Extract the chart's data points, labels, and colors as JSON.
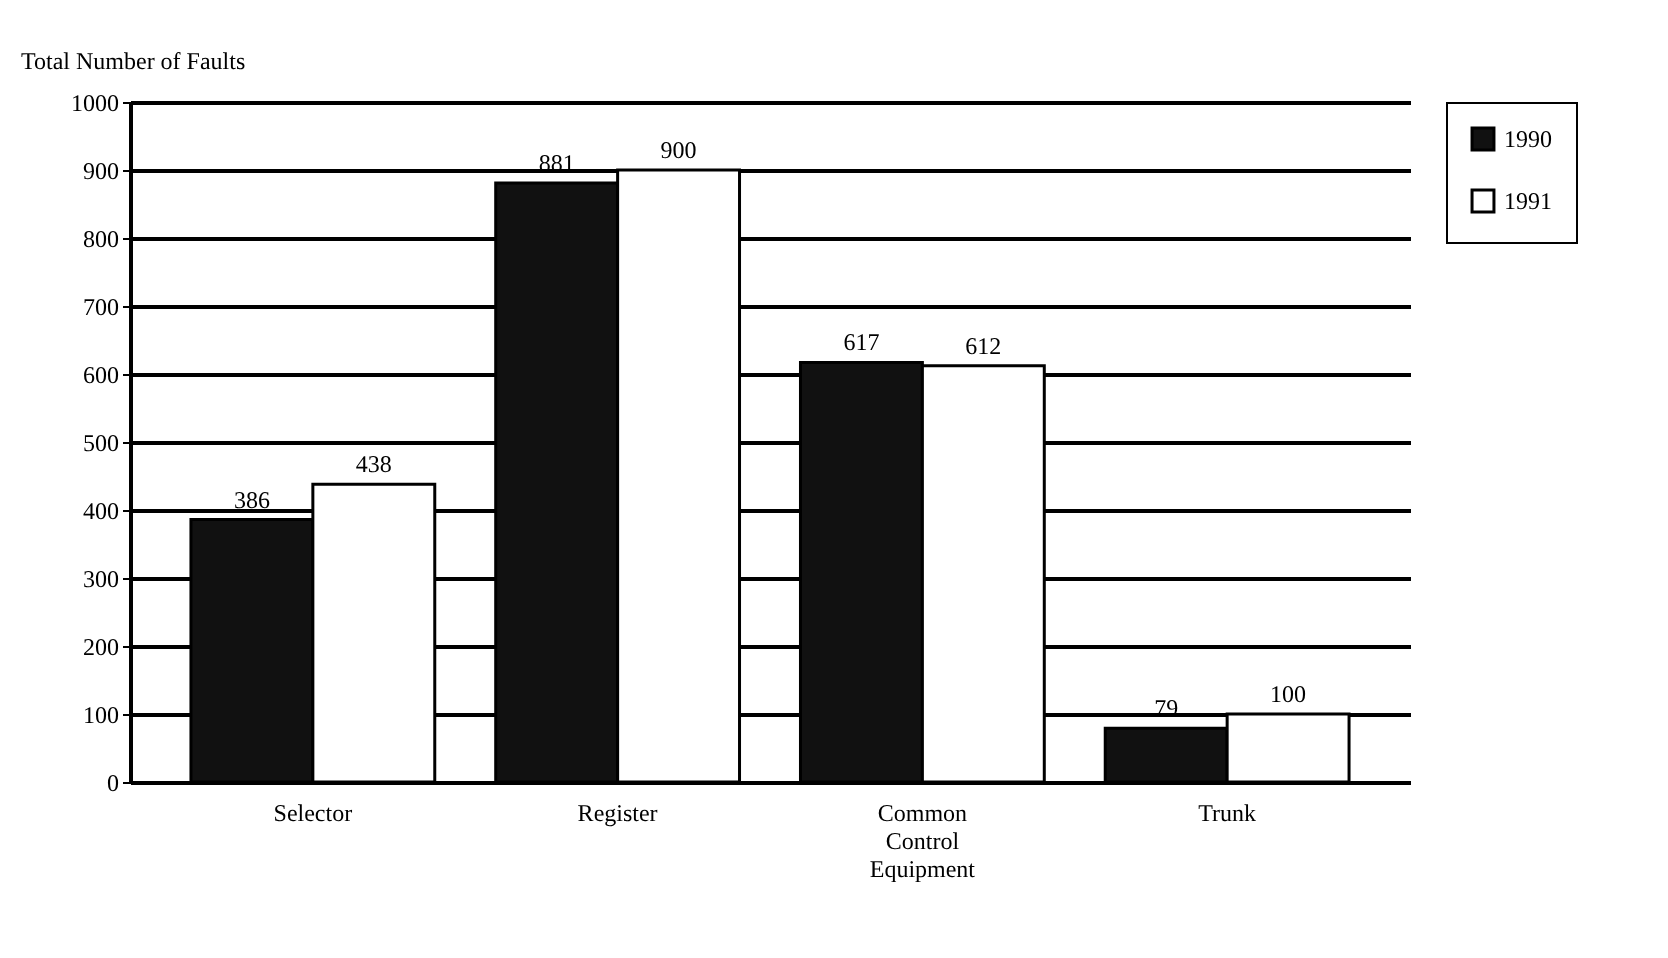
{
  "chart_data": {
    "type": "bar",
    "ylabel": "Total Number of Faults",
    "categories": [
      "Selector",
      "Register",
      "Common Control Equipment",
      "Trunk"
    ],
    "series": [
      {
        "name": "1990",
        "color": "#111111",
        "values": [
          386,
          881,
          617,
          79
        ]
      },
      {
        "name": "1991",
        "color": "#ffffff",
        "values": [
          438,
          900,
          612,
          100
        ]
      }
    ],
    "ylim": [
      0,
      1000
    ],
    "yticks": [
      0,
      100,
      200,
      300,
      400,
      500,
      600,
      700,
      800,
      900,
      1000
    ],
    "grid": "y",
    "legend": "right",
    "data_labels": true
  }
}
